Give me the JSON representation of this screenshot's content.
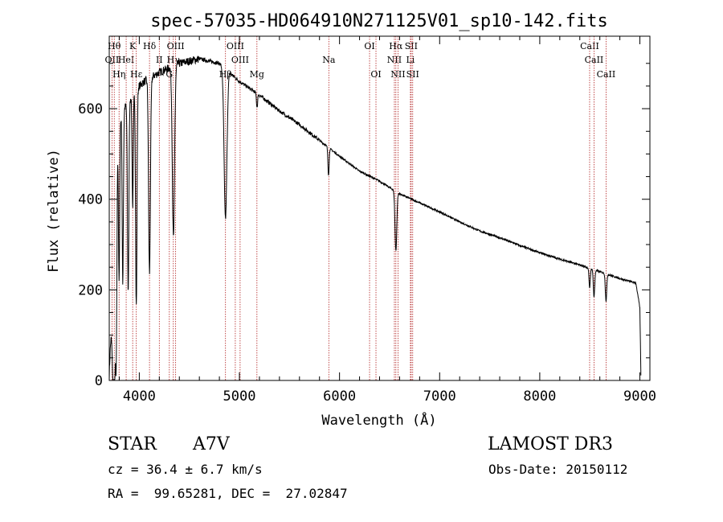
{
  "chart_data": {
    "type": "line",
    "title": "spec-57035-HD064910N271125V01_sp10-142.fits",
    "xlabel": "Wavelength (Å)",
    "ylabel": "Flux (relative)",
    "xlim": [
      3700,
      9100
    ],
    "ylim": [
      0,
      760
    ],
    "xticks": [
      4000,
      5000,
      6000,
      7000,
      8000,
      9000
    ],
    "yticks": [
      0,
      200,
      400,
      600
    ],
    "continuum": [
      [
        3700,
        10
      ],
      [
        3780,
        560
      ],
      [
        3850,
        600
      ],
      [
        3950,
        640
      ],
      [
        4050,
        660
      ],
      [
        4200,
        680
      ],
      [
        4400,
        700
      ],
      [
        4600,
        710
      ],
      [
        4800,
        700
      ],
      [
        5000,
        660
      ],
      [
        5200,
        630
      ],
      [
        5400,
        595
      ],
      [
        5600,
        565
      ],
      [
        5800,
        530
      ],
      [
        6000,
        495
      ],
      [
        6200,
        462
      ],
      [
        6400,
        440
      ],
      [
        6600,
        412
      ],
      [
        6800,
        392
      ],
      [
        7000,
        372
      ],
      [
        7200,
        350
      ],
      [
        7400,
        330
      ],
      [
        7600,
        315
      ],
      [
        7800,
        298
      ],
      [
        8000,
        282
      ],
      [
        8200,
        268
      ],
      [
        8400,
        255
      ],
      [
        8600,
        240
      ],
      [
        8800,
        225
      ],
      [
        8960,
        215
      ],
      [
        9000,
        160
      ],
      [
        9010,
        10
      ]
    ],
    "absorption": [
      [
        3750,
        420,
        15
      ],
      [
        3771,
        300,
        6
      ],
      [
        3798,
        350,
        6
      ],
      [
        3835,
        380,
        6
      ],
      [
        3889,
        420,
        7
      ],
      [
        3934,
        250,
        6
      ],
      [
        3970,
        480,
        7
      ],
      [
        4102,
        430,
        9
      ],
      [
        4341,
        380,
        11
      ],
      [
        4861,
        330,
        14
      ],
      [
        5176,
        30,
        6
      ],
      [
        5890,
        60,
        6
      ],
      [
        6563,
        130,
        9
      ],
      [
        8498,
        45,
        6
      ],
      [
        8542,
        60,
        7
      ],
      [
        8662,
        60,
        7
      ]
    ],
    "lines": [
      {
        "wl": 3727,
        "label": "OII",
        "row": 2
      },
      {
        "wl": 3750,
        "label": "Hθ",
        "row": 1
      },
      {
        "wl": 3798,
        "label": "Hη",
        "row": 3
      },
      {
        "wl": 3869,
        "label": "HeI",
        "row": 2
      },
      {
        "wl": 3934,
        "label": "K",
        "row": 1
      },
      {
        "wl": 3970,
        "label": "Hε",
        "row": 3
      },
      {
        "wl": 4102,
        "label": "Hδ",
        "row": 1
      },
      {
        "wl": 4200,
        "label": "II",
        "row": 2
      },
      {
        "wl": 4300,
        "label": "G",
        "row": 3
      },
      {
        "wl": 4340,
        "label": "Hγ",
        "row": 2
      },
      {
        "wl": 4363,
        "label": "OIII",
        "row": 1
      },
      {
        "wl": 4861,
        "label": "Hβ",
        "row": 3
      },
      {
        "wl": 4959,
        "label": "OIII",
        "row": 1
      },
      {
        "wl": 5007,
        "label": "OIII",
        "row": 2
      },
      {
        "wl": 5175,
        "label": "Mg",
        "row": 3
      },
      {
        "wl": 5893,
        "label": "Na",
        "row": 2
      },
      {
        "wl": 6300,
        "label": "OI",
        "row": 1
      },
      {
        "wl": 6364,
        "label": "OI",
        "row": 3
      },
      {
        "wl": 6548,
        "label": "NII",
        "row": 2
      },
      {
        "wl": 6563,
        "label": "Hα",
        "row": 1
      },
      {
        "wl": 6584,
        "label": "NII",
        "row": 3
      },
      {
        "wl": 6708,
        "label": "Li",
        "row": 2
      },
      {
        "wl": 6716,
        "label": "SII",
        "row": 1
      },
      {
        "wl": 6731,
        "label": "SII",
        "row": 3
      },
      {
        "wl": 8498,
        "label": "CaII",
        "row": 1
      },
      {
        "wl": 8542,
        "label": "CaII",
        "row": 2
      },
      {
        "wl": 8662,
        "label": "CaII",
        "row": 3
      }
    ]
  },
  "info": {
    "object_type": "STAR",
    "spectral_class": "A7V",
    "survey": "LAMOST DR3",
    "redshift": "cz = 36.4 ± 6.7 km/s",
    "obs_date": "Obs-Date: 20150112",
    "coordinates": "RA =  99.65281, DEC =  27.02847"
  }
}
